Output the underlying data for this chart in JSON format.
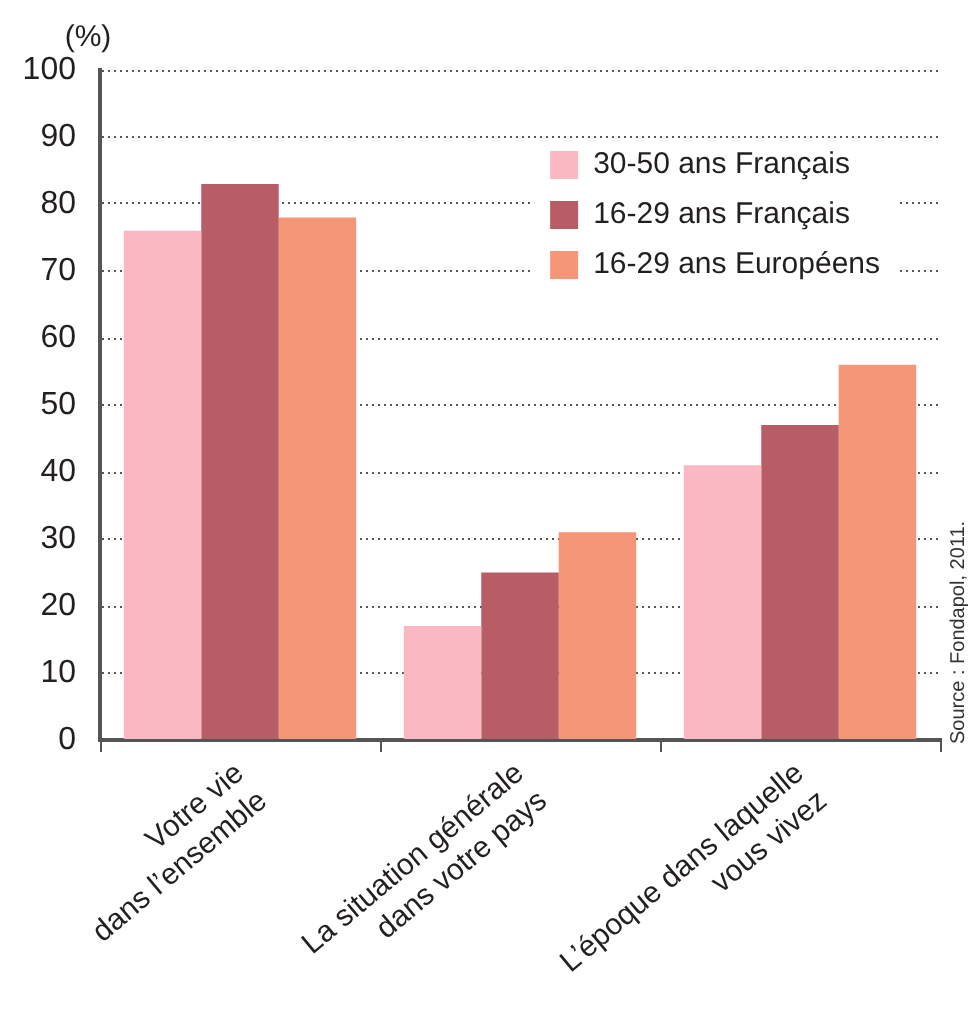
{
  "chart_data": {
    "type": "bar",
    "categories": [
      "Votre vie\ndans l’ensemble",
      "La situation générale\ndans votre pays",
      "L’époque dans laquelle\nvous vivez"
    ],
    "series": [
      {
        "name": "30-50 ans Français",
        "color": "#f9b8c2",
        "values": [
          76,
          17,
          41
        ]
      },
      {
        "name": "16-29 ans Français",
        "color": "#b85c66",
        "values": [
          83,
          25,
          47
        ]
      },
      {
        "name": "16-29 ans Européens",
        "color": "#f49677",
        "values": [
          78,
          31,
          56
        ]
      }
    ],
    "ylabel": "(%)",
    "ylim": [
      0,
      100
    ],
    "yticks": [
      0,
      10,
      20,
      30,
      40,
      50,
      60,
      70,
      80,
      90,
      100
    ],
    "grid": "y",
    "legend": "top right",
    "annotations": [
      "Source : Fondapol, 2011."
    ]
  }
}
